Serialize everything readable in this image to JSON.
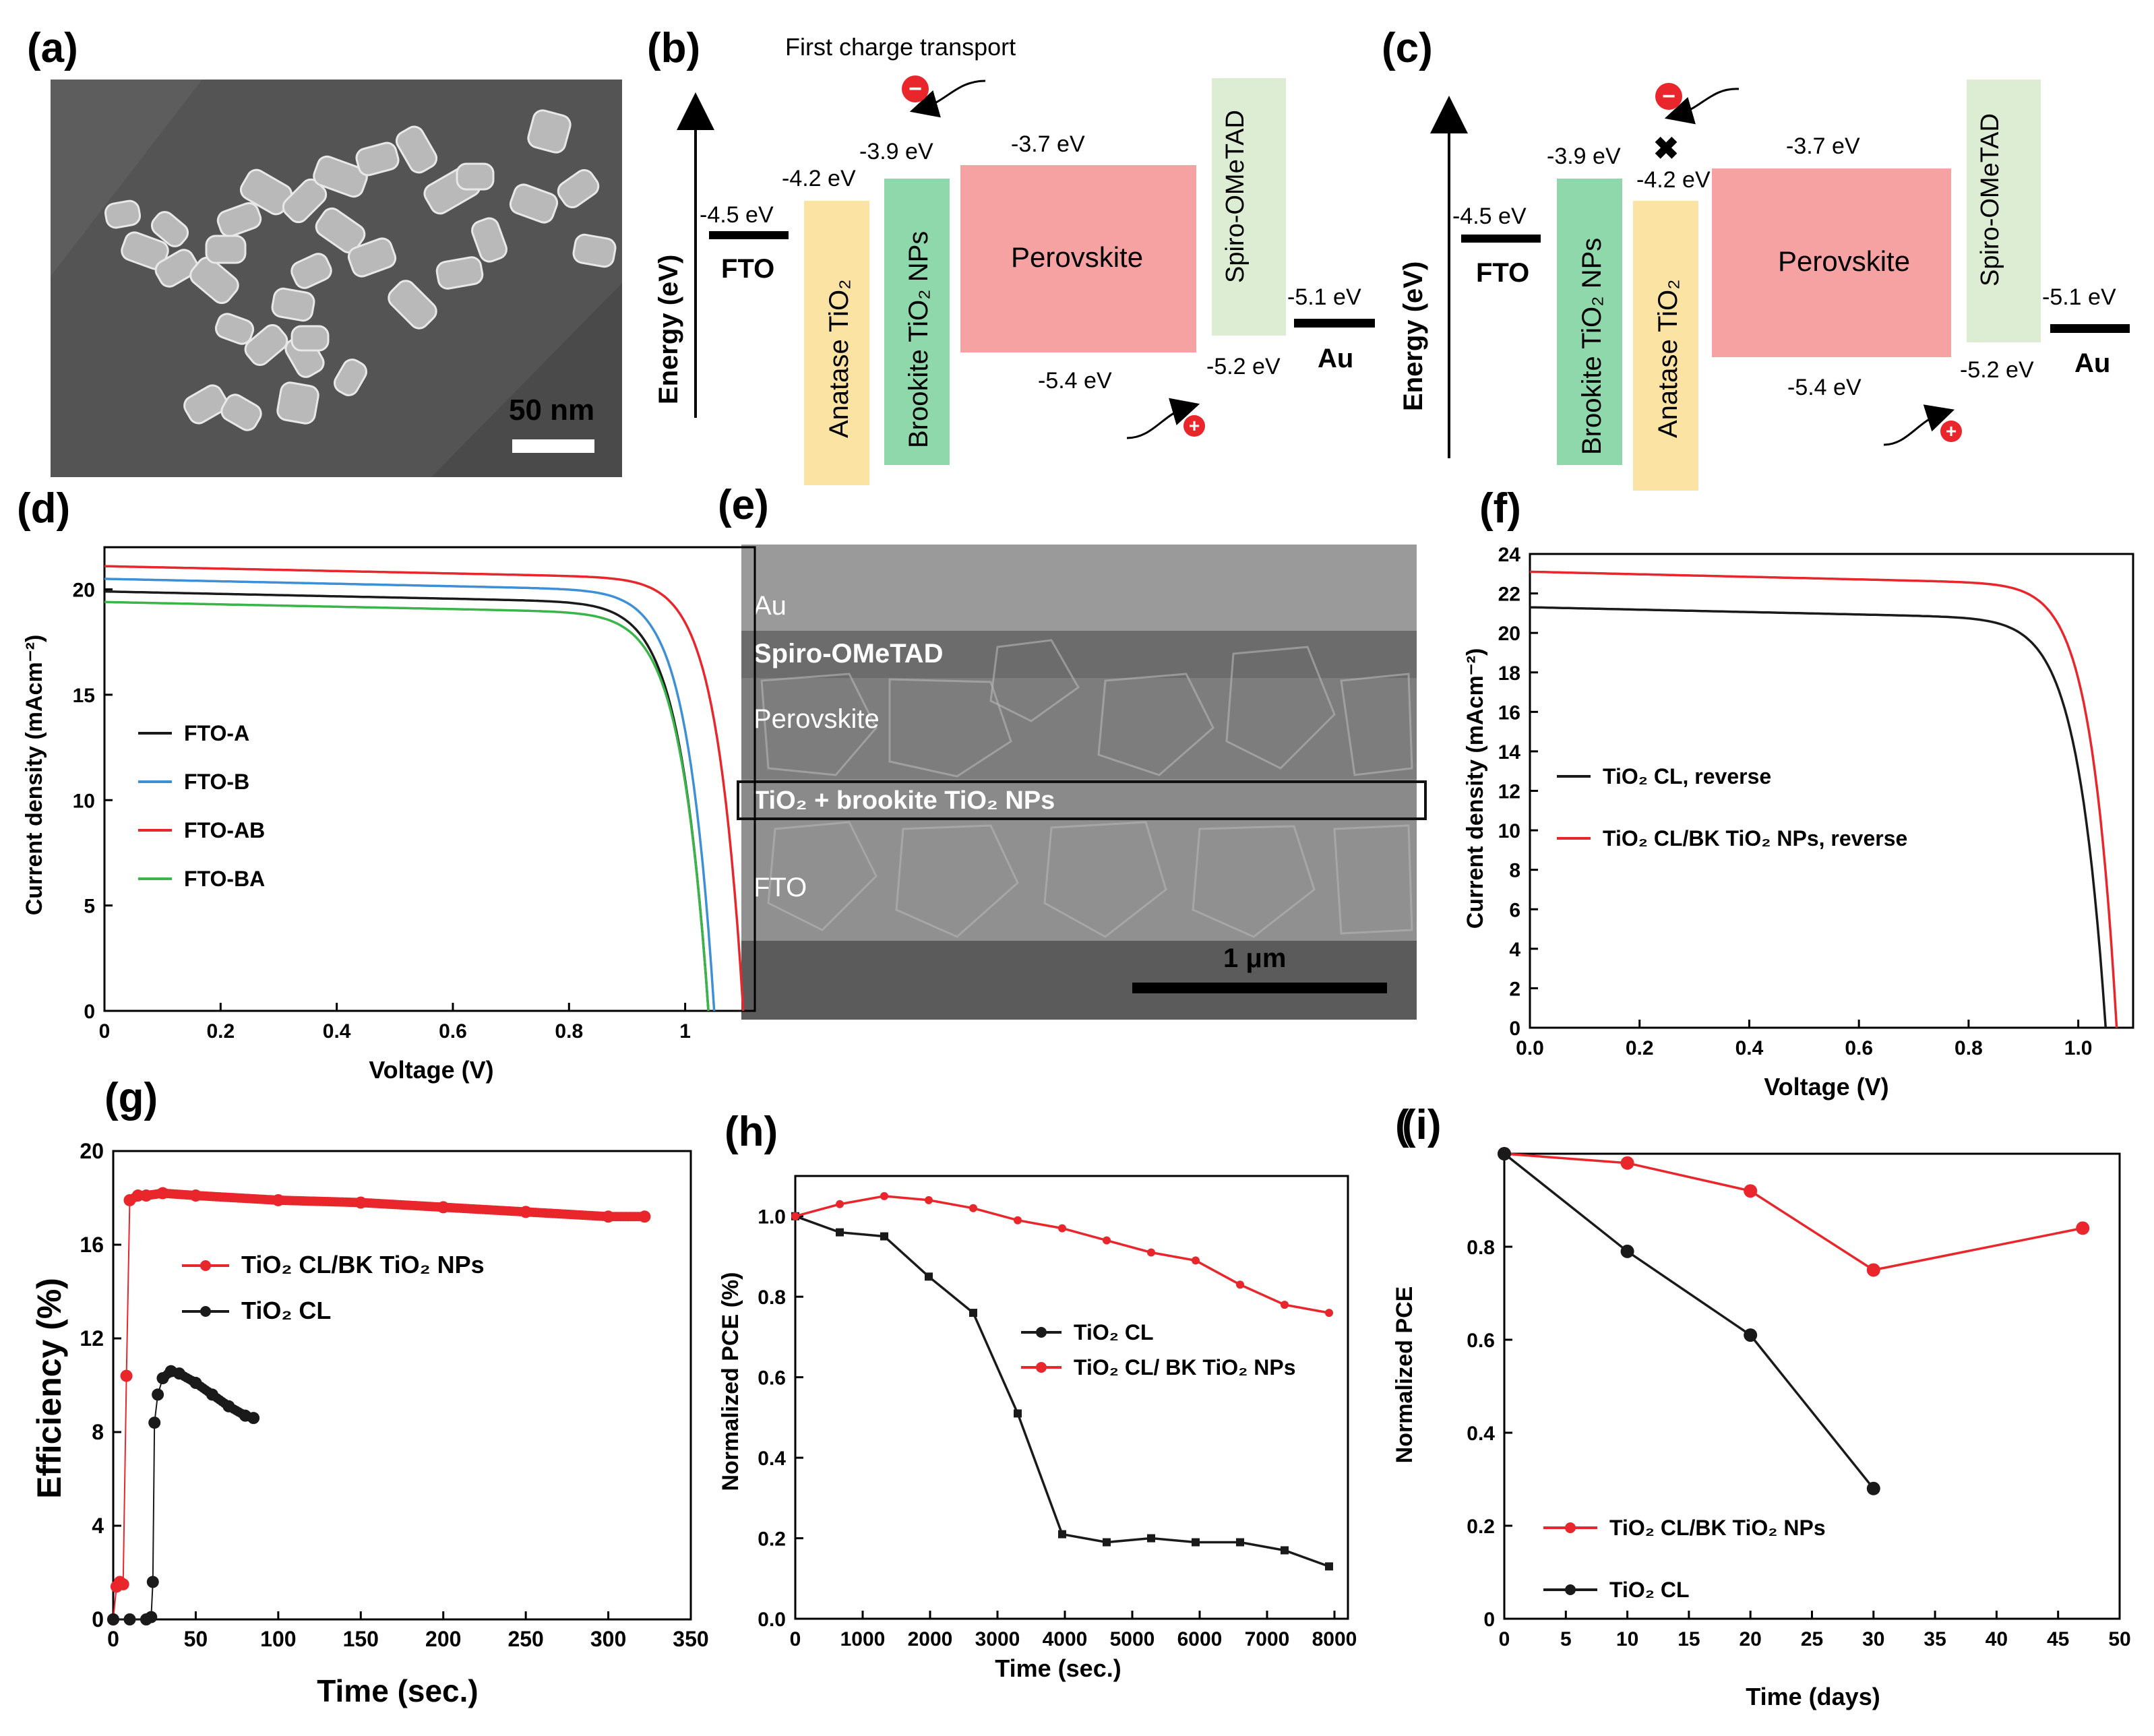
{
  "panel_labels": {
    "a": "(a)",
    "b": "(b)",
    "c": "(c)",
    "d": "(d)",
    "e": "(e)",
    "f": "(f)",
    "g": "(g)",
    "h": "(h)",
    "i": "(i)"
  },
  "colors": {
    "red": "#e8262b",
    "black": "#1a1a1a",
    "blue": "#3d8fd6",
    "green": "#39b54a",
    "anatase": "#fbe3a4",
    "brookite": "#8ed8ab",
    "perovskite": "#f6a2a2",
    "spiro": "#dcedd3"
  },
  "sem_a": {
    "scale_label": "50 nm"
  },
  "band_b": {
    "note": "First charge transport",
    "axis_label": "Energy (eV)",
    "fto": "FTO",
    "fto_level": "-4.5 eV",
    "anatase": "Anatase TiO₂",
    "anatase_level": "-4.2 eV",
    "brookite": "Brookite TiO₂ NPs",
    "brookite_level": "-3.9 eV",
    "perovskite": "Perovskite",
    "pv_top": "-3.7 eV",
    "pv_bottom": "-5.4 eV",
    "spiro": "Spiro-OMeTAD",
    "spiro_level": "-5.2 eV",
    "au": "Au",
    "au_level": "-5.1 eV",
    "electron": "−",
    "hole": "+"
  },
  "band_c": {
    "axis_label": "Energy (eV)",
    "fto": "FTO",
    "fto_level": "-4.5 eV",
    "brookite": "Brookite TiO₂ NPs",
    "brookite_level": "-3.9 eV",
    "block_mark": "✖",
    "anatase": "Anatase TiO₂",
    "anatase_level": "-4.2 eV",
    "perovskite": "Perovskite",
    "pv_top": "-3.7 eV",
    "pv_bottom": "-5.4 eV",
    "spiro": "Spiro-OMeTAD",
    "spiro_level": "-5.2 eV",
    "au": "Au",
    "au_level": "-5.1 eV",
    "electron": "−",
    "hole": "+"
  },
  "sem_e": {
    "layers": [
      "Au",
      "Spiro-OMeTAD",
      "Perovskite",
      "TiO₂ + brookite TiO₂ NPs",
      "FTO"
    ],
    "scale_label": "1 μm"
  },
  "chart_data": [
    {
      "id": "d",
      "type": "line",
      "title": "",
      "xlabel": "Voltage (V)",
      "ylabel": "Current density (mAcm⁻²)",
      "xlim": [
        0,
        1.12
      ],
      "ylim": [
        0,
        22
      ],
      "xticks": [
        0,
        0.2,
        0.4,
        0.6,
        0.8,
        1
      ],
      "xtick_labels": [
        "0",
        "0.2",
        "0.4",
        "0.6",
        "0.8",
        "1"
      ],
      "yticks": [
        0,
        5,
        10,
        15,
        20
      ],
      "ytick_labels": [
        "0",
        "5",
        "10",
        "15",
        "20"
      ],
      "legend": "middle-left",
      "series": [
        {
          "name": "FTO-A",
          "color": "#1a1a1a",
          "jsc": 19.9,
          "voc": 1.04,
          "knee": 0.82
        },
        {
          "name": "FTO-B",
          "color": "#3d8fd6",
          "jsc": 20.5,
          "voc": 1.05,
          "knee": 0.87
        },
        {
          "name": "FTO-AB",
          "color": "#e8262b",
          "jsc": 21.1,
          "voc": 1.1,
          "knee": 0.92
        },
        {
          "name": "FTO-BA",
          "color": "#39b54a",
          "jsc": 19.4,
          "voc": 1.04,
          "knee": 0.84
        }
      ]
    },
    {
      "id": "f",
      "type": "line",
      "title": "",
      "xlabel": "Voltage (V)",
      "ylabel": "Current density (mAcm⁻²)",
      "xlim": [
        0,
        1.1
      ],
      "ylim": [
        0,
        24
      ],
      "xticks": [
        0,
        0.2,
        0.4,
        0.6,
        0.8,
        1
      ],
      "xtick_labels": [
        "0.0",
        "0.2",
        "0.4",
        "0.6",
        "0.8",
        "1.0"
      ],
      "yticks": [
        0,
        2,
        4,
        6,
        8,
        10,
        12,
        14,
        16,
        18,
        20,
        22,
        24
      ],
      "ytick_labels": [
        "0",
        "2",
        "4",
        "6",
        "8",
        "10",
        "12",
        "14",
        "16",
        "18",
        "20",
        "22",
        "24"
      ],
      "legend": "middle-left",
      "series": [
        {
          "name": "TiO₂ CL, reverse",
          "color": "#1a1a1a",
          "jsc": 21.3,
          "voc": 1.05,
          "knee": 0.79
        },
        {
          "name": "TiO₂ CL/BK TiO₂ NPs, reverse",
          "color": "#e8262b",
          "jsc": 23.1,
          "voc": 1.07,
          "knee": 0.88
        }
      ]
    },
    {
      "id": "g",
      "type": "scatter",
      "title": "",
      "xlabel": "Time (sec.)",
      "ylabel": "Efficiency (%)",
      "xlim": [
        0,
        350
      ],
      "ylim": [
        0,
        20
      ],
      "xticks": [
        0,
        50,
        100,
        150,
        200,
        250,
        300,
        350
      ],
      "xtick_labels": [
        "0",
        "50",
        "100",
        "150",
        "200",
        "250",
        "300",
        "350"
      ],
      "yticks": [
        0,
        4,
        8,
        12,
        16,
        20
      ],
      "ytick_labels": [
        "0",
        "4",
        "8",
        "12",
        "16",
        "20"
      ],
      "legend": "middle-left",
      "series": [
        {
          "name": "TiO₂ CL/BK TiO₂ NPs",
          "color": "#e8262b",
          "x": [
            0,
            2,
            4,
            6,
            8,
            10,
            15,
            20,
            30,
            50,
            100,
            150,
            200,
            250,
            300,
            322
          ],
          "y": [
            0,
            1.4,
            1.6,
            1.5,
            10.4,
            17.9,
            18.1,
            18.1,
            18.2,
            18.1,
            17.9,
            17.8,
            17.6,
            17.4,
            17.2,
            17.2
          ]
        },
        {
          "name": "TiO₂ CL",
          "color": "#1a1a1a",
          "x": [
            0,
            10,
            20,
            23,
            24,
            25,
            27,
            30,
            35,
            40,
            50,
            60,
            70,
            80,
            85
          ],
          "y": [
            0,
            0,
            0,
            0.1,
            1.6,
            8.4,
            9.6,
            10.3,
            10.6,
            10.5,
            10.1,
            9.6,
            9.1,
            8.7,
            8.6
          ]
        }
      ]
    },
    {
      "id": "h",
      "type": "line",
      "title": "",
      "xlabel": "Time (sec.)",
      "ylabel": "Normalized PCE (%)",
      "xlim": [
        0,
        8200
      ],
      "ylim": [
        0,
        1.1
      ],
      "xticks": [
        0,
        1000,
        2000,
        3000,
        4000,
        5000,
        6000,
        7000,
        8000
      ],
      "xtick_labels": [
        "0",
        "1000",
        "2000",
        "3000",
        "4000",
        "5000",
        "6000",
        "7000",
        "8000"
      ],
      "yticks": [
        0,
        0.2,
        0.4,
        0.6,
        0.8,
        1.0
      ],
      "ytick_labels": [
        "0.0",
        "0.2",
        "0.4",
        "0.6",
        "0.8",
        "1.0"
      ],
      "legend": "middle-right",
      "series": [
        {
          "name": "TiO₂ CL",
          "color": "#1a1a1a",
          "x": [
            0,
            660,
            1320,
            1980,
            2640,
            3300,
            3960,
            4620,
            5280,
            5940,
            6600,
            7260,
            7920
          ],
          "y": [
            1.0,
            0.96,
            0.95,
            0.85,
            0.76,
            0.51,
            0.21,
            0.19,
            0.2,
            0.19,
            0.19,
            0.17,
            0.13
          ]
        },
        {
          "name": "TiO₂ CL/ BK TiO₂ NPs",
          "color": "#e8262b",
          "x": [
            0,
            660,
            1320,
            1980,
            2640,
            3300,
            3960,
            4620,
            5280,
            5940,
            6600,
            7260,
            7920
          ],
          "y": [
            1.0,
            1.03,
            1.05,
            1.04,
            1.02,
            0.99,
            0.97,
            0.94,
            0.91,
            0.89,
            0.83,
            0.78,
            0.76
          ]
        }
      ]
    },
    {
      "id": "i",
      "type": "line",
      "title": "",
      "xlabel": "Time (days)",
      "ylabel": "Normalized PCE",
      "xlim": [
        0,
        50
      ],
      "ylim": [
        0,
        1.0
      ],
      "xticks": [
        0,
        5,
        10,
        15,
        20,
        25,
        30,
        35,
        40,
        45,
        50
      ],
      "xtick_labels": [
        "0",
        "5",
        "10",
        "15",
        "20",
        "25",
        "30",
        "35",
        "40",
        "45",
        "50"
      ],
      "yticks": [
        0,
        0.2,
        0.4,
        0.6,
        0.8
      ],
      "ytick_labels": [
        "0",
        "0.2",
        "0.4",
        "0.6",
        "0.8"
      ],
      "legend": "bottom-left",
      "series": [
        {
          "name": "TiO₂ CL/BK TiO₂ NPs",
          "color": "#e8262b",
          "x": [
            0,
            10,
            20,
            30,
            47
          ],
          "y": [
            1.0,
            0.98,
            0.92,
            0.75,
            0.84
          ]
        },
        {
          "name": "TiO₂ CL",
          "color": "#1a1a1a",
          "x": [
            0,
            10,
            20,
            30
          ],
          "y": [
            1.0,
            0.79,
            0.61,
            0.28
          ]
        }
      ]
    }
  ]
}
